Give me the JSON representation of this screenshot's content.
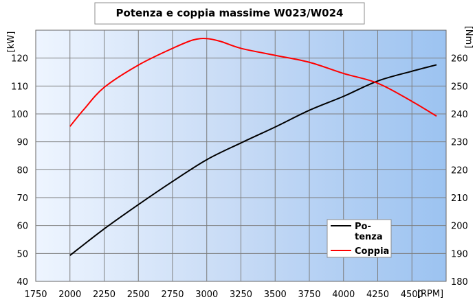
{
  "chart_data": {
    "type": "line",
    "title": "Potenza e coppia massime W023/W024",
    "xlabel": "[RPM]",
    "ylabel_left": "[kW]",
    "ylabel_right": "[Nm]",
    "xlim": [
      1750,
      4750
    ],
    "ylim_left": [
      40,
      130
    ],
    "ylim_right": [
      180,
      270
    ],
    "x_ticks": [
      1750,
      2000,
      2250,
      2500,
      2750,
      3000,
      3250,
      3500,
      3750,
      4000,
      4250,
      4500
    ],
    "y_ticks_left": [
      40,
      50,
      60,
      70,
      80,
      90,
      100,
      110,
      120
    ],
    "y_ticks_right": [
      180,
      190,
      200,
      210,
      220,
      230,
      240,
      250,
      260
    ],
    "grid": true,
    "legend_position": "bottom-right",
    "series": [
      {
        "name": "Potenza",
        "axis": "left",
        "color": "#000000",
        "x": [
          2000,
          2250,
          2500,
          2750,
          3000,
          3250,
          3500,
          3750,
          4000,
          4250,
          4500,
          4680
        ],
        "values": [
          49.3,
          58.8,
          67.5,
          75.8,
          83.6,
          89.6,
          95.3,
          101.3,
          106.3,
          111.8,
          115.3,
          117.6
        ]
      },
      {
        "name": "Coppia",
        "axis": "right",
        "color": "#ff0000",
        "x": [
          2000,
          2100,
          2250,
          2500,
          2750,
          2900,
          3000,
          3100,
          3250,
          3500,
          3750,
          4000,
          4250,
          4500,
          4680
        ],
        "values": [
          235.5,
          241.5,
          249.5,
          257.5,
          263.5,
          266.5,
          267,
          266,
          263.5,
          261,
          258.5,
          254.5,
          251,
          244.5,
          239.2
        ]
      }
    ]
  }
}
